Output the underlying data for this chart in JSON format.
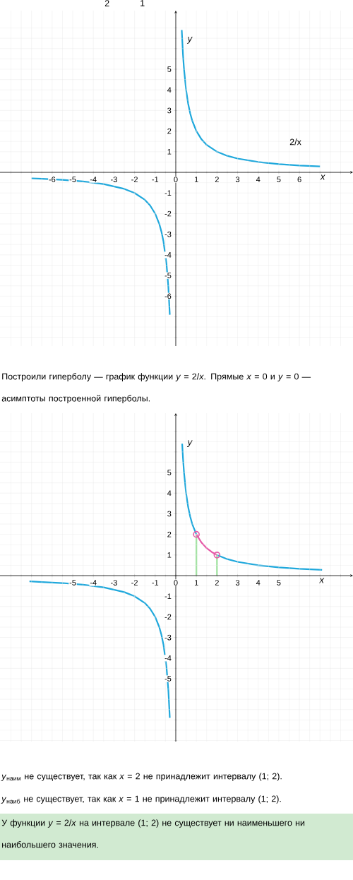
{
  "chart_data": [
    {
      "type": "line",
      "xlabel": "x",
      "ylabel": "y",
      "xlim": [
        -8.53,
        8.6
      ],
      "ylim": [
        -8.42,
        7.84
      ],
      "grid": true,
      "xticks": [
        {
          "value": -8,
          "label": null
        },
        {
          "value": -7,
          "label": null
        },
        -6,
        -5,
        -4,
        -3,
        -2,
        -1,
        0,
        1,
        2,
        3,
        4,
        5,
        6,
        {
          "value": 7,
          "label": null
        },
        {
          "value": 8,
          "label": null
        }
      ],
      "yticks": [
        {
          "value": -8,
          "label": null
        },
        {
          "value": -7,
          "label": null
        },
        -6,
        -5,
        -4,
        -3,
        -2,
        -1,
        {
          "value": 0,
          "label": null
        },
        1,
        2,
        3,
        4,
        5,
        {
          "value": 6,
          "label": null
        },
        {
          "value": 7,
          "label": null
        }
      ],
      "series": [
        {
          "type": "line",
          "color": "#1fa8dc",
          "x": [
            -7,
            -6.5,
            -5.5,
            -4.5,
            -3.5,
            -2.5,
            -2,
            -1.5,
            -1.25,
            -1,
            -0.8,
            -0.7,
            -0.6,
            -0.45,
            -0.36,
            -0.29
          ],
          "values": [
            -0.29,
            -0.31,
            -0.36,
            -0.44,
            -0.57,
            -0.8,
            -1,
            -1.33,
            -1.6,
            -2,
            -2.5,
            -2.86,
            -3.33,
            -4.44,
            -5.56,
            -6.9
          ]
        },
        {
          "type": "line",
          "color": "#1fa8dc",
          "x": [
            0.29,
            0.35,
            0.4,
            0.5,
            0.6,
            0.7,
            0.8,
            1,
            1.25,
            1.5,
            2,
            2.5,
            3,
            4,
            5,
            6,
            7
          ],
          "values": [
            6.9,
            5.71,
            5,
            4,
            3.33,
            2.86,
            2.5,
            2,
            1.6,
            1.33,
            1,
            0.8,
            0.67,
            0.5,
            0.4,
            0.33,
            0.29
          ]
        }
      ],
      "annotations": [
        "2",
        "1",
        "2/x",
        "Построили гиперболу — график функции *y* = 2/*x*. Прямые *x* = 0 и *y* = 0 — асимптоты построенной гиперболы."
      ]
    },
    {
      "type": "line",
      "xlabel": "x",
      "ylabel": "y",
      "xlim": [
        -8.53,
        8.6
      ],
      "ylim": [
        -8.05,
        7.88
      ],
      "grid": true,
      "xticks": [
        {
          "value": -8,
          "label": null
        },
        {
          "value": -7,
          "label": null
        },
        {
          "value": -6,
          "label": null
        },
        -5,
        -4,
        -3,
        -2,
        -1,
        0,
        1,
        2,
        3,
        4,
        5,
        {
          "value": 6,
          "label": null
        },
        {
          "value": 7,
          "label": null
        },
        {
          "value": 8,
          "label": null
        }
      ],
      "yticks": [
        {
          "value": -8,
          "label": null
        },
        {
          "value": -7,
          "label": null
        },
        {
          "value": -6,
          "label": null
        },
        -5,
        -4,
        -3,
        -2,
        -1,
        {
          "value": 0,
          "label": null
        },
        1,
        2,
        3,
        4,
        5,
        {
          "value": 6,
          "label": null
        },
        {
          "value": 7,
          "label": null
        }
      ],
      "series": [
        {
          "type": "line",
          "color": "#1fa8dc",
          "x": [
            -7.1,
            -6.5,
            -5.5,
            -4.5,
            -3.5,
            -2.5,
            -2,
            -1.5,
            -1.25,
            -1,
            -0.8,
            -0.7,
            -0.6,
            -0.45,
            -0.36,
            -0.29
          ],
          "values": [
            -0.28,
            -0.31,
            -0.36,
            -0.44,
            -0.57,
            -0.8,
            -1,
            -1.33,
            -1.6,
            -2,
            -2.5,
            -2.86,
            -3.33,
            -4.44,
            -5.56,
            -6.9
          ]
        },
        {
          "type": "line",
          "color": "#1fa8dc",
          "x": [
            0.31,
            0.35,
            0.4,
            0.5,
            0.6,
            0.7,
            0.8,
            1,
            1.25,
            1.5,
            2,
            2.5,
            3,
            4,
            5,
            6,
            7.1
          ],
          "values": [
            6.4,
            5.71,
            5,
            4,
            3.33,
            2.86,
            2.5,
            2,
            null,
            null,
            1,
            0.8,
            0.67,
            0.5,
            0.4,
            0.33,
            0.28
          ]
        },
        {
          "type": "line",
          "color": "#8fe08f",
          "x": [
            1,
            1
          ],
          "values": [
            0,
            2
          ]
        },
        {
          "type": "line",
          "color": "#8fe08f",
          "x": [
            2,
            2
          ],
          "values": [
            0,
            1
          ]
        },
        {
          "type": "line",
          "color": "#e65aa8",
          "x": [
            1,
            1.25,
            1.5,
            1.75,
            2
          ],
          "values": [
            2,
            1.6,
            1.33,
            1.14,
            1
          ]
        },
        {
          "type": "scatter",
          "marker": "circle",
          "color": "#e65aa8",
          "x": [
            1,
            2
          ],
          "values": [
            2,
            1
          ]
        }
      ],
      "annotations": [
        "*y*$_{наим}$ не существует, так как *x* = 2 не принадлежит интервалу (1; 2).",
        "*y*$_{наиб}$ не существует, так как *x* = 1 не принадлежит интервалу (1; 2).",
        "У функции *y* = 2/*x* на интервале (1; 2) не существует ни наименьшего ни наибольшего значения."
      ]
    }
  ]
}
